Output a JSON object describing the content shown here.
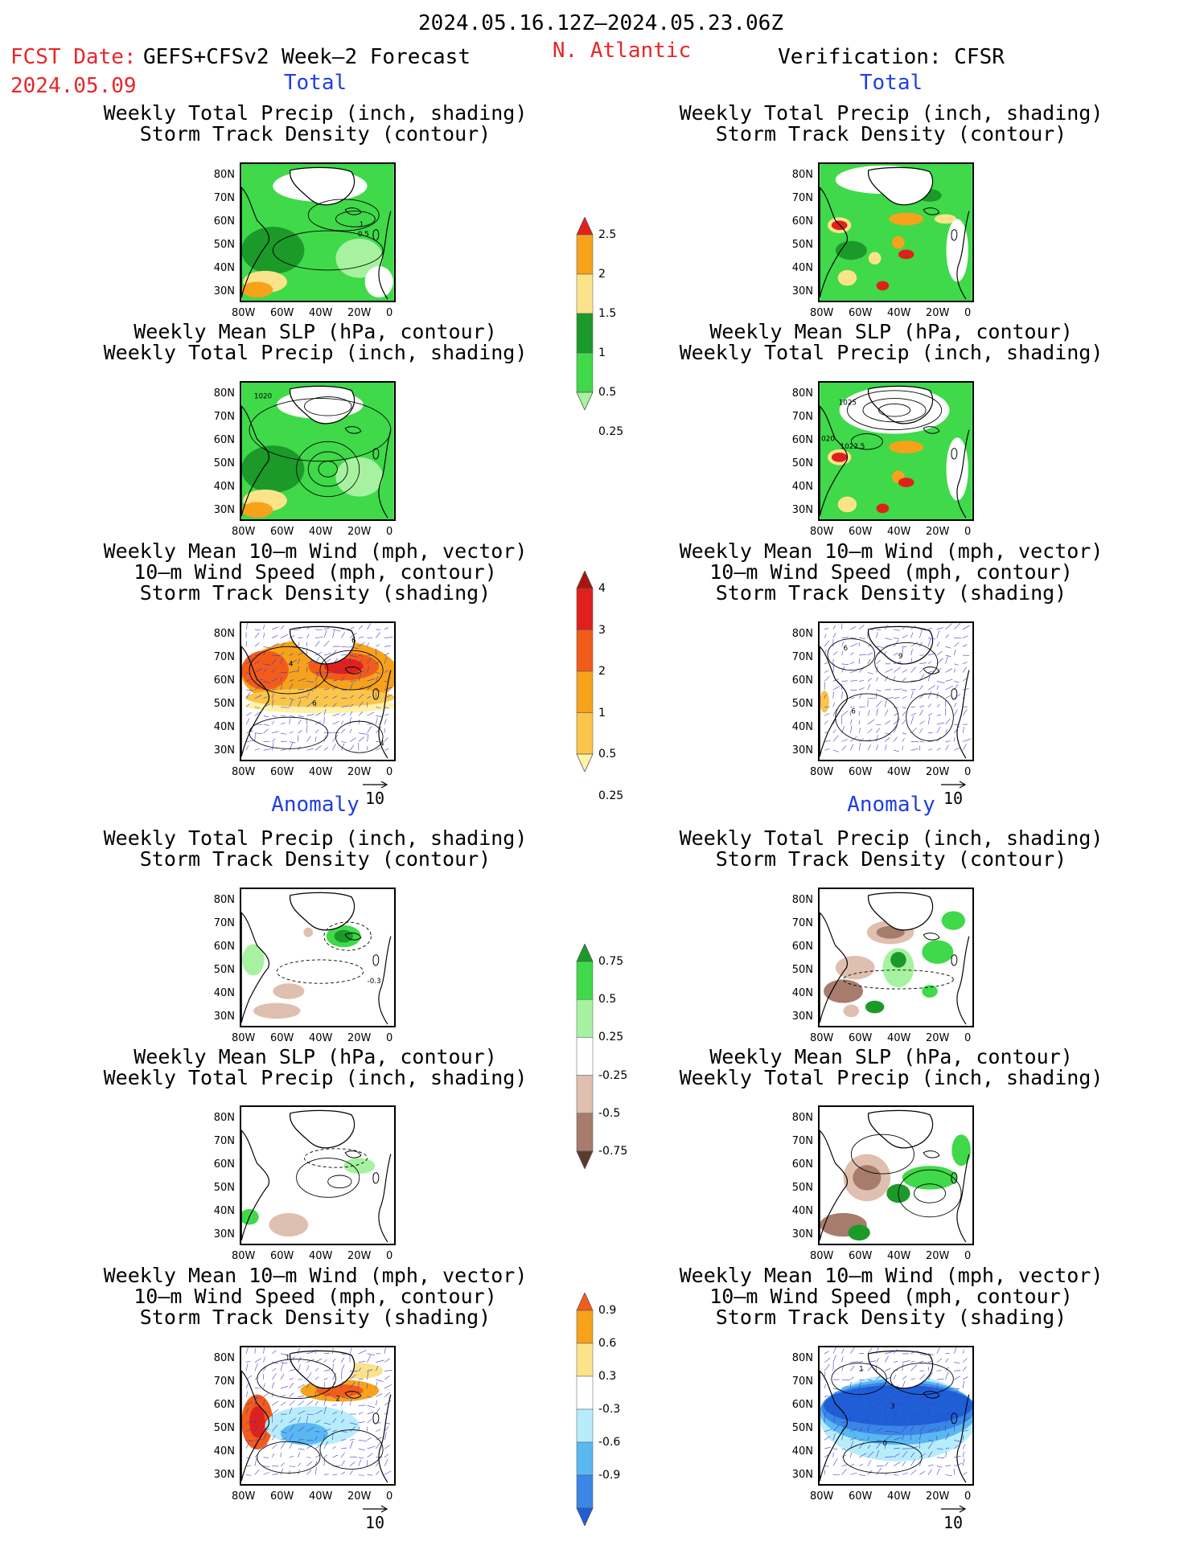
{
  "header": {
    "period": "2024.05.16.12Z–2024.05.23.06Z",
    "fcst_date_label": "FCST Date:",
    "fcst_date_value": "2024.05.09",
    "forecast_name": "GEFS+CFSv2 Week–2 Forecast",
    "region": "N. Atlantic",
    "verification": "Verification: CFSR"
  },
  "sections": {
    "total": "Total",
    "anomaly": "Anomaly"
  },
  "titles": {
    "precip_storm": [
      "Weekly Total Precip (inch, shading)",
      "Storm Track Density (contour)"
    ],
    "slp_precip": [
      "Weekly Mean SLP (hPa, contour)",
      "Weekly Total Precip (inch, shading)"
    ],
    "wind_storm": [
      "Weekly Mean 10–m Wind (mph, vector)",
      "10–m Wind Speed (mph, contour)",
      "Storm Track Density (shading)"
    ]
  },
  "axes": {
    "lat": [
      "80N",
      "70N",
      "60N",
      "50N",
      "40N",
      "30N"
    ],
    "lon": [
      "80W",
      "60W",
      "40W",
      "20W",
      "0"
    ]
  },
  "vector_ref": "10",
  "contour_labels": {
    "fc_precip_total": [
      "1",
      "0.5"
    ],
    "fc_slp_total": [
      "1020"
    ],
    "ver_slp_total": [
      "1025",
      "1022.5",
      "020"
    ],
    "fc_wind_total": [
      "4",
      "6",
      "6",
      "4"
    ],
    "ver_wind_total": [
      "6",
      "9",
      "6"
    ],
    "fc_precip_anom": [
      "-0.3"
    ],
    "fc_wind_anom": [
      "1",
      "2"
    ],
    "ver_wind_anom": [
      "1",
      "3",
      "0"
    ]
  },
  "colorbars": {
    "precip_total": {
      "labels": [
        "2.5",
        "2",
        "1.5",
        "1",
        "0.5",
        "0.25"
      ],
      "colors": [
        "#e0211b",
        "#f7a21b",
        "#fbe38a",
        "#1b9a2a",
        "#3fd94a",
        "#a6f2a0"
      ]
    },
    "storm_total": {
      "labels": [
        "4",
        "3",
        "2",
        "1",
        "0.5",
        "0.25"
      ],
      "colors": [
        "#a5160f",
        "#e0211b",
        "#f25c1a",
        "#f7a21b",
        "#fbc54a",
        "#fdf3a8"
      ]
    },
    "precip_anom": {
      "labels": [
        "0.75",
        "0.5",
        "0.25",
        "-0.25",
        "-0.5",
        "-0.75"
      ],
      "colors": [
        "#1b9a2a",
        "#3fd94a",
        "#a6f2a0",
        "#ffffff",
        "#dfbfb0",
        "#a77c6c",
        "#5a3b2e"
      ]
    },
    "storm_anom": {
      "labels": [
        "0.9",
        "0.6",
        "0.3",
        "-0.3",
        "-0.6",
        "-0.9"
      ],
      "colors": [
        "#f25c1a",
        "#f7a21b",
        "#fbe38a",
        "#ffffff",
        "#b7ecfb",
        "#5ab8f0",
        "#3b86e6",
        "#1f5fd6"
      ]
    }
  }
}
